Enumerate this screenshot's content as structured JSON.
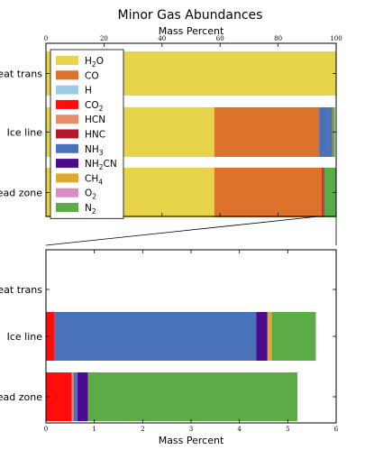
{
  "chart_data": {
    "type": "bar",
    "orientation": "horizontal",
    "stacked": true,
    "title": "Minor Gas Abundances",
    "xlabel": "Mass Percent",
    "categories": [
      "Heat trans",
      "Ice line",
      "Dead zone"
    ],
    "species": [
      {
        "name": "H2O",
        "base": "H",
        "sub": "2",
        "tail": "O",
        "color": "#e8d44a"
      },
      {
        "name": "CO",
        "base": "CO",
        "sub": "",
        "tail": "",
        "color": "#dd722c"
      },
      {
        "name": "H",
        "base": "H",
        "sub": "",
        "tail": "",
        "color": "#9dcbe6"
      },
      {
        "name": "CO2",
        "base": "CO",
        "sub": "2",
        "tail": "",
        "color": "#ff0d0d"
      },
      {
        "name": "HCN",
        "base": "HCN",
        "sub": "",
        "tail": "",
        "color": "#e58f6b"
      },
      {
        "name": "HNC",
        "base": "HNC",
        "sub": "",
        "tail": "",
        "color": "#b2182b"
      },
      {
        "name": "NH3",
        "base": "NH",
        "sub": "3",
        "tail": "",
        "color": "#4a72b8"
      },
      {
        "name": "NH2CN",
        "base": "NH",
        "sub": "2",
        "tail": "CN",
        "color": "#4b0c8e"
      },
      {
        "name": "CH4",
        "base": "CH",
        "sub": "4",
        "tail": "",
        "color": "#dfa82f"
      },
      {
        "name": "O2",
        "base": "O",
        "sub": "2",
        "tail": "",
        "color": "#d88fbf"
      },
      {
        "name": "N2",
        "base": "N",
        "sub": "2",
        "tail": "",
        "color": "#5dab47"
      }
    ],
    "series_values": {
      "Heat trans": [
        100,
        0,
        0,
        0.003,
        0,
        0,
        0.004,
        0,
        0,
        0,
        0
      ],
      "Ice line": [
        58.0,
        36.0,
        0,
        0.18,
        0,
        0,
        4.17,
        0.23,
        0.09,
        0,
        0.91
      ],
      "Dead zone": [
        58.0,
        37.0,
        0,
        0.53,
        0.04,
        0,
        0.08,
        0.22,
        0,
        0,
        4.33
      ]
    },
    "top_panel": {
      "xlim": [
        0,
        100
      ],
      "xticks": [
        "0",
        "20",
        "40",
        "60",
        "80",
        "100"
      ],
      "tick_values": [
        0,
        20,
        40,
        60,
        80,
        100
      ],
      "xlabel_position": "top"
    },
    "bottom_panel": {
      "xlim": [
        0,
        6
      ],
      "xticks": [
        "0",
        "1",
        "2",
        "3",
        "4",
        "5",
        "6"
      ],
      "tick_values": [
        0,
        1,
        2,
        3,
        4,
        5,
        6
      ],
      "excluded_species": [
        "H2O",
        "CO"
      ]
    },
    "legend_position": "upper-left",
    "grid": false
  }
}
